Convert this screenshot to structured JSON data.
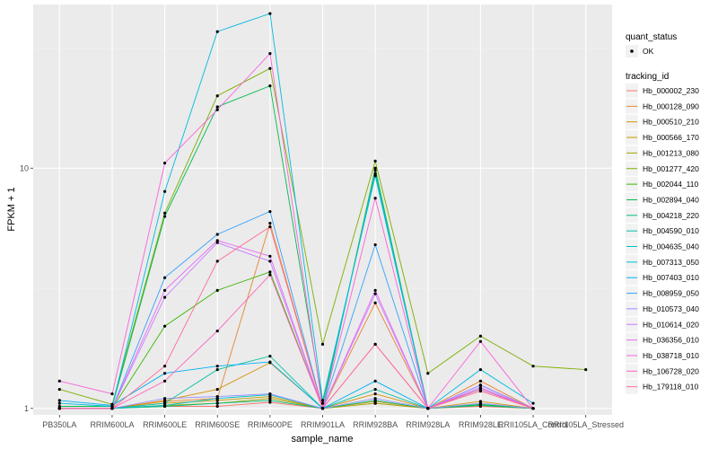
{
  "chart_data": {
    "type": "line",
    "xlabel": "sample_name",
    "ylabel": "FPKM + 1",
    "y_scale": "log10",
    "y_ticks": [
      1,
      10
    ],
    "y_tick_labels": [
      "1",
      "10"
    ],
    "ylim": [
      0.94,
      48
    ],
    "grid": true,
    "legend_position": "right",
    "categories": [
      "PB350LA",
      "RRIM600LA",
      "RRIM600LE",
      "RRIM600SE",
      "RRIM600PE",
      "RRIM901LA",
      "RRIM928BA",
      "RRIM928LA",
      "RRIM928LE",
      "RRII105LA_Control",
      "RRII105LA_Stressed"
    ],
    "quant_status_legend": {
      "title": "quant_status",
      "entries": [
        "OK"
      ]
    },
    "series_legend_title": "tracking_id",
    "series": [
      {
        "name": "Hb_000002_230",
        "color": "#F8766D",
        "values": [
          1.0,
          1.0,
          1.02,
          1.02,
          1.06,
          1.0,
          1.05,
          1.0,
          1.02,
          1.0,
          null
        ]
      },
      {
        "name": "Hb_000128_090",
        "color": "#EA8331",
        "values": [
          1.0,
          1.0,
          1.07,
          1.1,
          5.9,
          1.0,
          2.75,
          1.0,
          1.3,
          1.0,
          null
        ]
      },
      {
        "name": "Hb_000510_210",
        "color": "#D89000",
        "values": [
          1.0,
          1.0,
          1.08,
          1.2,
          1.55,
          1.0,
          1.15,
          1.0,
          1.07,
          1.0,
          null
        ]
      },
      {
        "name": "Hb_000566_170",
        "color": "#C09B00",
        "values": [
          1.0,
          1.0,
          1.05,
          1.08,
          1.12,
          1.0,
          1.07,
          1.0,
          1.03,
          1.0,
          null
        ]
      },
      {
        "name": "Hb_001213_080",
        "color": "#A3A500",
        "values": [
          1.0,
          1.0,
          1.03,
          1.05,
          1.1,
          1.0,
          1.05,
          1.0,
          1.03,
          1.0,
          null
        ]
      },
      {
        "name": "Hb_001277_420",
        "color": "#7CAE00",
        "values": [
          1.2,
          1.04,
          6.5,
          20.0,
          26.0,
          1.85,
          10.7,
          1.4,
          2.0,
          1.5,
          1.45
        ]
      },
      {
        "name": "Hb_002044_110",
        "color": "#39B600",
        "values": [
          1.0,
          1.0,
          2.2,
          3.1,
          3.7,
          1.0,
          10.0,
          1.0,
          1.03,
          1.0,
          null
        ]
      },
      {
        "name": "Hb_002894_040",
        "color": "#00BB4E",
        "values": [
          1.02,
          1.02,
          6.3,
          18.0,
          22.0,
          1.05,
          9.5,
          1.0,
          1.04,
          1.0,
          null
        ]
      },
      {
        "name": "Hb_004218_220",
        "color": "#00BF7D",
        "values": [
          1.0,
          1.0,
          1.02,
          1.05,
          1.08,
          1.0,
          1.08,
          1.0,
          1.03,
          1.0,
          null
        ]
      },
      {
        "name": "Hb_004590_010",
        "color": "#00C1A3",
        "values": [
          1.0,
          1.0,
          1.05,
          1.45,
          1.65,
          1.0,
          1.2,
          1.0,
          1.2,
          1.0,
          null
        ]
      },
      {
        "name": "Hb_004635_040",
        "color": "#00BFC4",
        "values": [
          1.0,
          1.0,
          1.03,
          1.1,
          1.14,
          1.0,
          9.8,
          1.0,
          1.25,
          1.0,
          null
        ]
      },
      {
        "name": "Hb_007313_050",
        "color": "#00BAE0",
        "values": [
          1.05,
          1.02,
          8.0,
          37.0,
          44.0,
          1.08,
          9.3,
          1.0,
          1.45,
          1.05,
          null
        ]
      },
      {
        "name": "Hb_007403_010",
        "color": "#00B0F6",
        "values": [
          1.08,
          1.03,
          1.4,
          1.5,
          1.56,
          1.0,
          1.3,
          1.0,
          1.25,
          1.0,
          null
        ]
      },
      {
        "name": "Hb_008959_050",
        "color": "#35A2FF",
        "values": [
          1.0,
          1.0,
          3.5,
          5.3,
          6.6,
          1.0,
          4.8,
          1.0,
          1.22,
          1.0,
          null
        ]
      },
      {
        "name": "Hb_010573_040",
        "color": "#9590FF",
        "values": [
          1.0,
          1.0,
          1.1,
          1.12,
          1.15,
          1.0,
          1.1,
          1.0,
          1.05,
          1.0,
          null
        ]
      },
      {
        "name": "Hb_010614_020",
        "color": "#C77CFF",
        "values": [
          1.0,
          1.0,
          2.9,
          4.9,
          4.1,
          1.0,
          3.0,
          1.0,
          1.25,
          1.0,
          null
        ]
      },
      {
        "name": "Hb_036356_010",
        "color": "#E76BF3",
        "values": [
          1.0,
          1.0,
          3.1,
          5.0,
          4.3,
          1.0,
          3.1,
          1.0,
          1.22,
          1.0,
          null
        ]
      },
      {
        "name": "Hb_038718_010",
        "color": "#FA62DB",
        "values": [
          1.3,
          1.15,
          10.5,
          17.5,
          30.0,
          1.0,
          7.5,
          1.0,
          1.9,
          1.0,
          null
        ]
      },
      {
        "name": "Hb_106728_020",
        "color": "#FF62BC",
        "values": [
          1.0,
          1.0,
          1.3,
          2.1,
          3.6,
          1.0,
          1.85,
          1.0,
          1.2,
          1.0,
          null
        ]
      },
      {
        "name": "Hb_179118_010",
        "color": "#FF6C91",
        "values": [
          1.0,
          1.0,
          1.5,
          4.1,
          5.7,
          1.0,
          1.85,
          1.0,
          1.18,
          1.0,
          null
        ]
      }
    ]
  }
}
